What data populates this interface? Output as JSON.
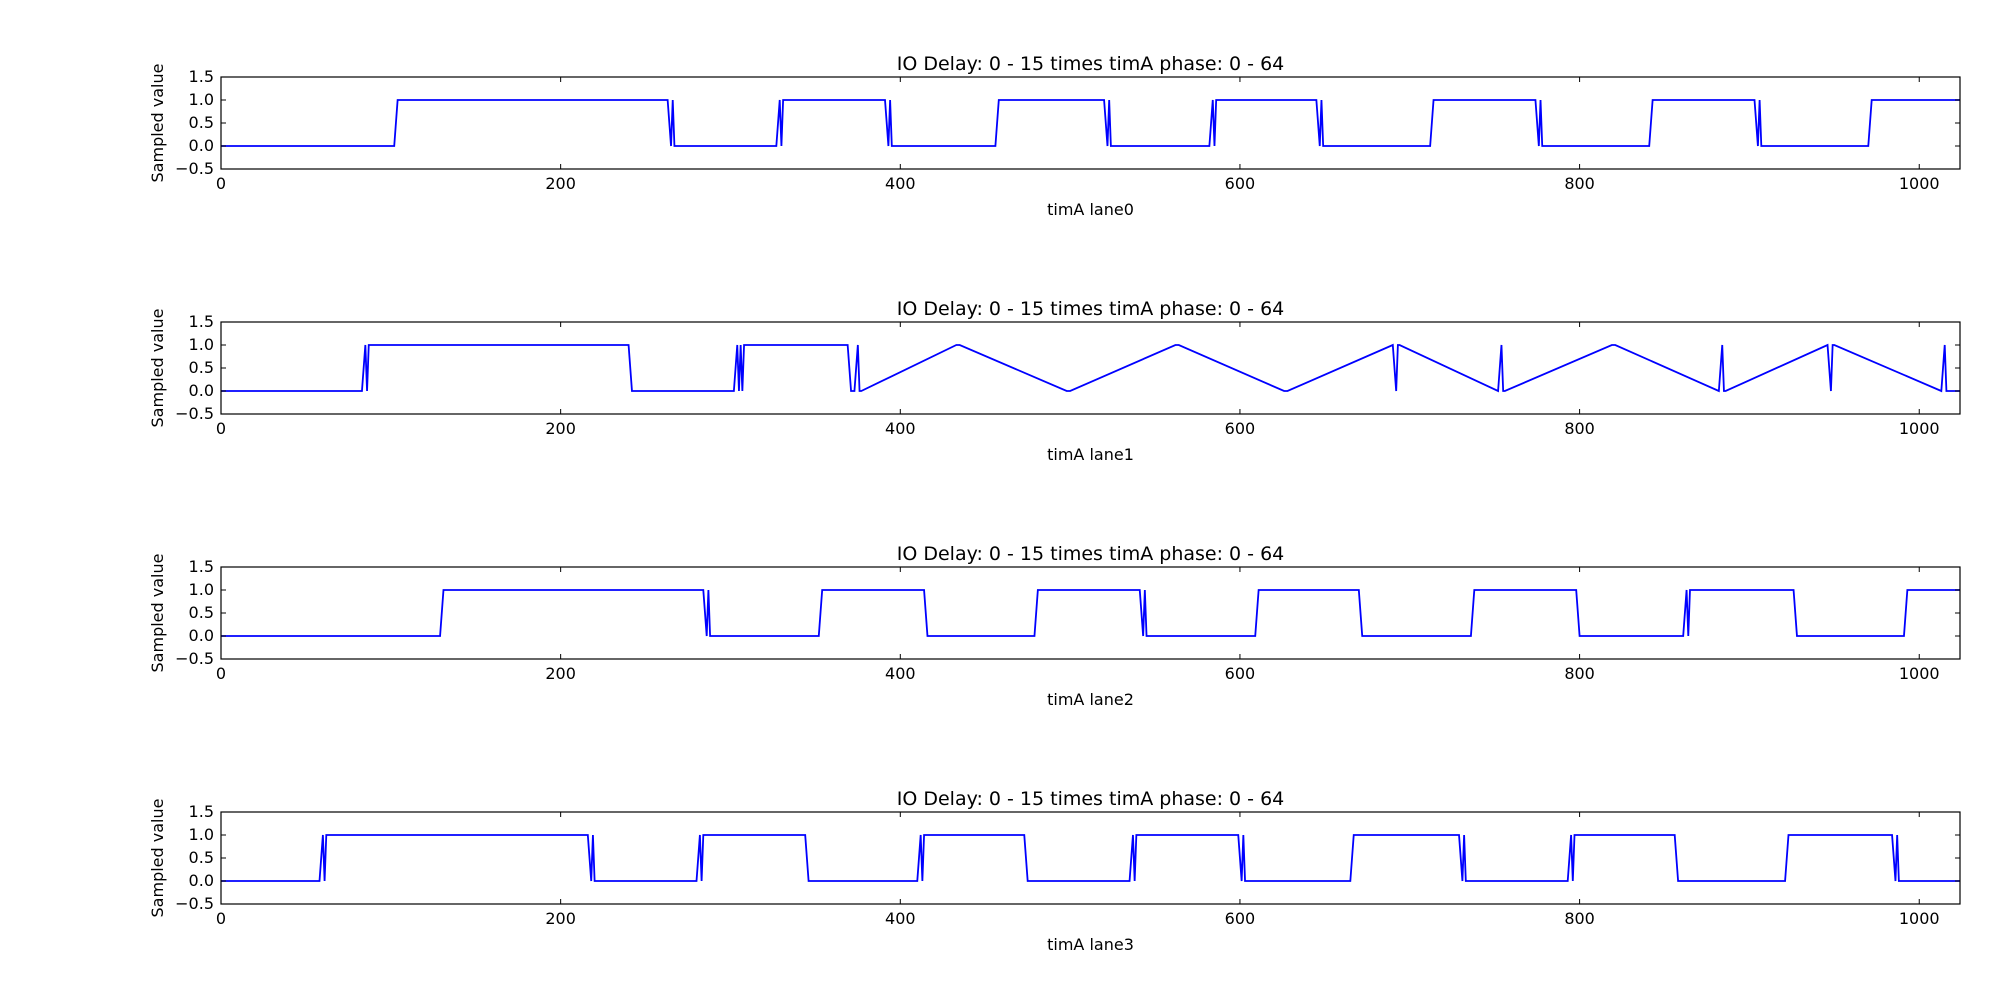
{
  "figure": {
    "background": "#ffffff",
    "line_color": "#0000ff"
  },
  "chart_data": [
    {
      "type": "line",
      "title": "IO Delay: 0 - 15 times timA phase: 0 - 64",
      "xlabel": "timA lane0",
      "ylabel": "Sampled value",
      "xlim": [
        0,
        1024
      ],
      "ylim": [
        -0.5,
        1.5
      ],
      "xticks": [
        0,
        200,
        400,
        600,
        800,
        1000
      ],
      "xtick_labels": [
        "0",
        "200",
        "400",
        "600",
        "800",
        "1000"
      ],
      "yticks": [
        -0.5,
        0.0,
        0.5,
        1.0,
        1.5
      ],
      "ytick_labels": [
        "−0.5",
        "0.0",
        "0.5",
        "1.0",
        "1.5"
      ],
      "grid": false,
      "series": [
        {
          "color": "#0000ff",
          "x": [
            0,
            102,
            104,
            263,
            265,
            266,
            267,
            268,
            327,
            329,
            330,
            331,
            391,
            393,
            394,
            395,
            456,
            458,
            520,
            522,
            523,
            524,
            582,
            584,
            585,
            586,
            645,
            647,
            648,
            649,
            712,
            714,
            774,
            776,
            777,
            778,
            841,
            843,
            903,
            905,
            906,
            907,
            970,
            972,
            1024
          ],
          "y": [
            0,
            0,
            1,
            1,
            0,
            1,
            0,
            0,
            0,
            1,
            0,
            1,
            1,
            0,
            1,
            0,
            0,
            1,
            1,
            0,
            1,
            0,
            0,
            1,
            0,
            1,
            1,
            0,
            1,
            0,
            0,
            1,
            1,
            0,
            1,
            0,
            0,
            1,
            1,
            0,
            1,
            0,
            0,
            1,
            1
          ]
        }
      ]
    },
    {
      "type": "line",
      "title": "IO Delay: 0 - 15 times timA phase: 0 - 64",
      "xlabel": "timA lane1",
      "ylabel": "Sampled value",
      "xlim": [
        0,
        1024
      ],
      "ylim": [
        -0.5,
        1.5
      ],
      "xticks": [
        0,
        200,
        400,
        600,
        800,
        1000
      ],
      "xtick_labels": [
        "0",
        "200",
        "400",
        "600",
        "800",
        "1000"
      ],
      "yticks": [
        -0.5,
        0.0,
        0.5,
        1.0,
        1.5
      ],
      "ytick_labels": [
        "−0.5",
        "0.0",
        "0.5",
        "1.0",
        "1.5"
      ],
      "grid": false,
      "series": [
        {
          "color": "#0000ff",
          "x": [
            0,
            83,
            85,
            86,
            87,
            240,
            242,
            302,
            304,
            305,
            306,
            307,
            308,
            369,
            371,
            373,
            375,
            376,
            377,
            433,
            435,
            498,
            500,
            562,
            564,
            626,
            628,
            690,
            692,
            693,
            694,
            752,
            754,
            755,
            756,
            819,
            821,
            882,
            884,
            885,
            886,
            946,
            948,
            949,
            950,
            1013,
            1015,
            1016,
            1017,
            1024
          ],
          "y": [
            0,
            0,
            1,
            0,
            1,
            1,
            0,
            0,
            1,
            0,
            1,
            0,
            1,
            1,
            0,
            0,
            1,
            0,
            0,
            1,
            1,
            0,
            0,
            1,
            1,
            0,
            0,
            1,
            0,
            1,
            1,
            0,
            1,
            0,
            0,
            1,
            1,
            0,
            1,
            0,
            0,
            1,
            0,
            1,
            1,
            0,
            1,
            0,
            0,
            0
          ]
        }
      ]
    },
    {
      "type": "line",
      "title": "IO Delay: 0 - 15 times timA phase: 0 - 64",
      "xlabel": "timA lane2",
      "ylabel": "Sampled value",
      "xlim": [
        0,
        1024
      ],
      "ylim": [
        -0.5,
        1.5
      ],
      "xticks": [
        0,
        200,
        400,
        600,
        800,
        1000
      ],
      "xtick_labels": [
        "0",
        "200",
        "400",
        "600",
        "800",
        "1000"
      ],
      "yticks": [
        -0.5,
        0.0,
        0.5,
        1.0,
        1.5
      ],
      "ytick_labels": [
        "−0.5",
        "0.0",
        "0.5",
        "1.0",
        "1.5"
      ],
      "grid": false,
      "series": [
        {
          "color": "#0000ff",
          "x": [
            0,
            129,
            131,
            284,
            286,
            287,
            288,
            352,
            354,
            414,
            416,
            479,
            481,
            541,
            543,
            544,
            545,
            609,
            611,
            670,
            672,
            736,
            738,
            798,
            800,
            861,
            863,
            864,
            865,
            926,
            928,
            991,
            993,
            1024
          ],
          "y": [
            0,
            0,
            1,
            1,
            0,
            1,
            0,
            0,
            1,
            1,
            0,
            0,
            1,
            1,
            0,
            1,
            0,
            0,
            1,
            1,
            0,
            0,
            1,
            1,
            0,
            0,
            1,
            0,
            1,
            1,
            0,
            0,
            1,
            1
          ]
        }
      ]
    },
    {
      "type": "line",
      "title": "IO Delay: 0 - 15 times timA phase: 0 - 64",
      "xlabel": "timA lane3",
      "ylabel": "Sampled value",
      "xlim": [
        0,
        1024
      ],
      "ylim": [
        -0.5,
        1.5
      ],
      "xticks": [
        0,
        200,
        400,
        600,
        800,
        1000
      ],
      "xtick_labels": [
        "0",
        "200",
        "400",
        "600",
        "800",
        "1000"
      ],
      "yticks": [
        -0.5,
        0.0,
        0.5,
        1.0,
        1.5
      ],
      "ytick_labels": [
        "−0.5",
        "0.0",
        "0.5",
        "1.0",
        "1.5"
      ],
      "grid": false,
      "series": [
        {
          "color": "#0000ff",
          "x": [
            0,
            58,
            60,
            61,
            62,
            216,
            218,
            219,
            220,
            280,
            282,
            283,
            284,
            344,
            346,
            410,
            412,
            413,
            414,
            473,
            475,
            535,
            537,
            538,
            539,
            599,
            601,
            602,
            603,
            665,
            667,
            729,
            731,
            732,
            733,
            793,
            795,
            796,
            797,
            856,
            858,
            921,
            923,
            984,
            986,
            987,
            988,
            1024
          ],
          "y": [
            0,
            0,
            1,
            0,
            1,
            1,
            0,
            1,
            0,
            0,
            1,
            0,
            1,
            1,
            0,
            0,
            1,
            0,
            1,
            1,
            0,
            0,
            1,
            0,
            1,
            1,
            0,
            1,
            0,
            0,
            1,
            1,
            0,
            1,
            0,
            0,
            1,
            0,
            1,
            1,
            0,
            0,
            1,
            1,
            0,
            1,
            0,
            0
          ]
        }
      ]
    }
  ]
}
